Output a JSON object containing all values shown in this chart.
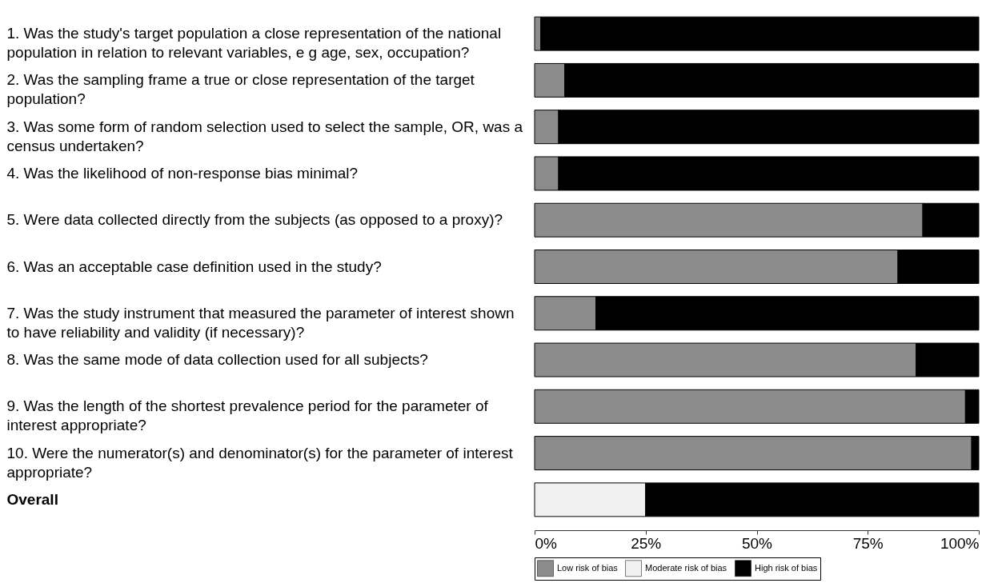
{
  "chart_data": {
    "type": "bar",
    "orientation": "horizontal",
    "stacked": true,
    "categories": [
      "1. Was the study's target population a close representation of the national population in relation to relevant variables, e g  age, sex, occupation?",
      "2.  Was the sampling frame a true or close representation of the target population?",
      "3.  Was some form of random selection used to select the sample, OR, was a census undertaken?",
      "4.  Was the likelihood of non-response bias minimal?",
      "5.  Were data collected directly from the subjects (as opposed to a proxy)?",
      "6.  Was an acceptable case definition used in the study?",
      "7.  Was the study instrument that measured the parameter of interest shown to have reliability and validity (if necessary)?",
      "8.  Was the same mode of data collection used for all subjects?",
      "9.  Was the length of the shortest prevalence period for the parameter of interest appropriate?",
      "10.  Were the numerator(s) and denominator(s) for the parameter of interest appropriate?",
      "Overall"
    ],
    "series": [
      {
        "name": "Low risk of bias",
        "color": "#8c8c8c",
        "values": [
          1.4,
          6.8,
          5.4,
          5.4,
          87.4,
          81.8,
          13.8,
          85.9,
          97.0,
          98.4,
          null
        ]
      },
      {
        "name": "Moderate risk of bias",
        "color": "#f0f0f0",
        "values": [
          null,
          null,
          null,
          null,
          null,
          null,
          null,
          null,
          null,
          null,
          25
        ]
      },
      {
        "name": "High risk of bias",
        "color": "#000000",
        "values": [
          98.6,
          93.2,
          94.6,
          94.6,
          12.6,
          18.2,
          86.2,
          14.1,
          3.0,
          1.6,
          75
        ]
      }
    ],
    "xlim": [
      0,
      100
    ],
    "xticks": [
      {
        "value": 0,
        "label": "0%"
      },
      {
        "value": 25,
        "label": "25%"
      },
      {
        "value": 50,
        "label": "50%"
      },
      {
        "value": 75,
        "label": "75%"
      },
      {
        "value": 100,
        "label": "100%"
      }
    ],
    "legend": "bottom",
    "grid": false
  }
}
